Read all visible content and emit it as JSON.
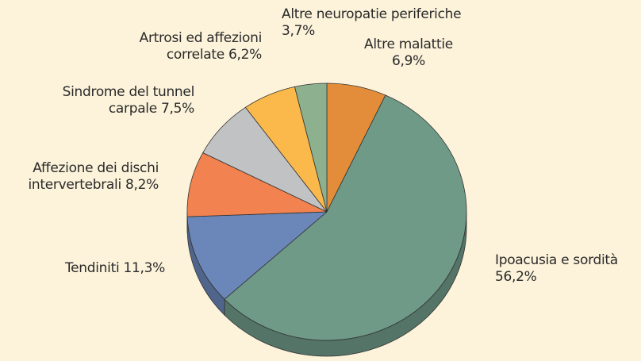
{
  "chart_data": {
    "type": "pie",
    "categories": [
      "Altre malattie",
      "Ipoacusia e sordità",
      "Tendiniti",
      "Affezione dei dischi intervertebrali",
      "Sindrome del tunnel carpale",
      "Artrosi ed affezioni correlate",
      "Altre neuropatie periferiche"
    ],
    "values": [
      6.9,
      56.2,
      11.3,
      8.2,
      7.5,
      6.2,
      3.7
    ],
    "value_labels": [
      "6,9%",
      "56,2%",
      "11,3%",
      "8,2%",
      "7,5%",
      "6,2%",
      "3,7%"
    ],
    "colors": [
      "#e38d3b",
      "#6f9a88",
      "#6b87b9",
      "#f2824f",
      "#c1c2c3",
      "#fbb94b",
      "#8db08e"
    ]
  }
}
